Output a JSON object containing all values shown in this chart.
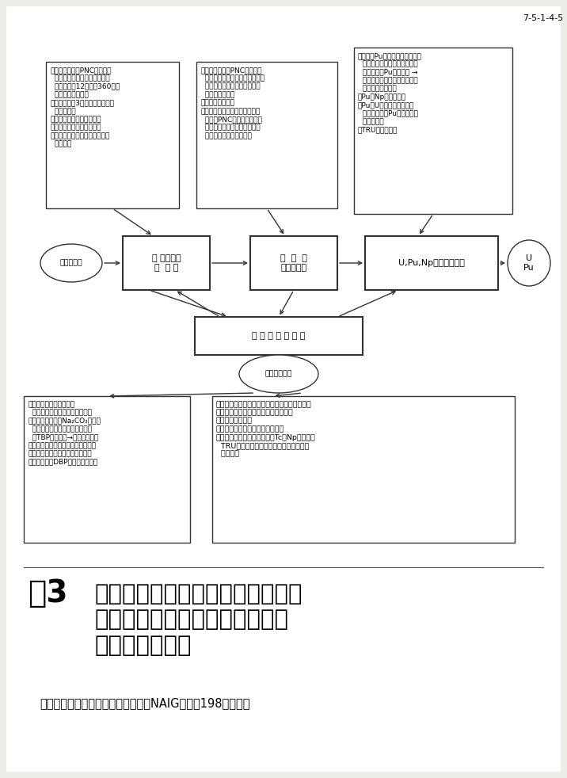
{
  "page_id": "7-5-1-4-5",
  "bg_color": "#f0f0eb",
  "white": "#ffffff",
  "tl_text": "・連続溶解槽（PNC再処理工\n  場はバッチ式溶解槽，日本原\n  燃工場では12時間に360度回\n  転する水車形式）\n・不溶性残渤3（ハルなど）の捕\n  集と分析法\n・溶解液中ヨウ素の追出法\n・ヨウ素の捕集法（久式）\n・オフガスの分析とクリプトン\n  の捕集法",
  "tc_text": "・共除染装置（PNC再処理工\n  場はミキサー・セトラー方式，\n  日本原燃工場ではパルスカラ\n  ム方式を採用）\n・臨界設計の評価\n・ノルマル・ドデカン希釈剤の\n  適用（PNC工場，日本原燃\n  工場で採用。一方フランスで\n  はイソ・ドデカン使用）",
  "tr_text": "・薬剤（Puの原子価変換用）を\n  使用しない「塩フリー」プロ\n  セスによるPuの還元法 →\n  「塩フリー」となると，廃棄\n  物量は減少する。\n・Pu・Npの共抄出法\n・PuとUの高度分離と精製\n  （廃棄物へのPu移行を最小\n  にさせる）\n・TRUの溶液化学",
  "bl_text": "・水リサイクル法による\n  トリチウムのリサイクル・回収\n・「塩フリー」（Na₂CO₃のよう\n  な塩を使用しない）による溶媒\n  （TBP）の洗浄→廃液量の減小\n・廃溶媒の処理（蔑留，酸化分解）\n・ヒドラジン塩による溶媒の再生\n・劣化溶媒（DBP）の化学的性質",
  "br_text": "・蔑留（常圧，減圧）法による濃縮技術の確立\n・ガラス固化前のアルカリ廃液の減容\n・分析廃液の処理\n・蔑留廃液中の残留有機物の影響\n・群分離法（改良）の開発－Tc・Npの分離，\n  TRUの分離プロセス，沈澐法などの代替\n  プロセス",
  "dissolve_text": "燃 料（棒）\nの  溶 解",
  "coextract_text": "共  抄  出\n（共除染）",
  "separate_text": "U,Pu,Npの分離・精製",
  "distill_text": "蔑 留 と 溶 媒 洗 浄",
  "fuel_text": "使用済燃料",
  "upu_text": "U\nPu",
  "waste_text": "高レベル廃液",
  "fig_label": "図3",
  "fig_title": "再処理プロセスの改良と、それを\n廃棄物対策の観点より見通した\n場合の開発課題",
  "source_text": "（出典）下川純一：日本原子力事業NAIG特報、198年９月号"
}
